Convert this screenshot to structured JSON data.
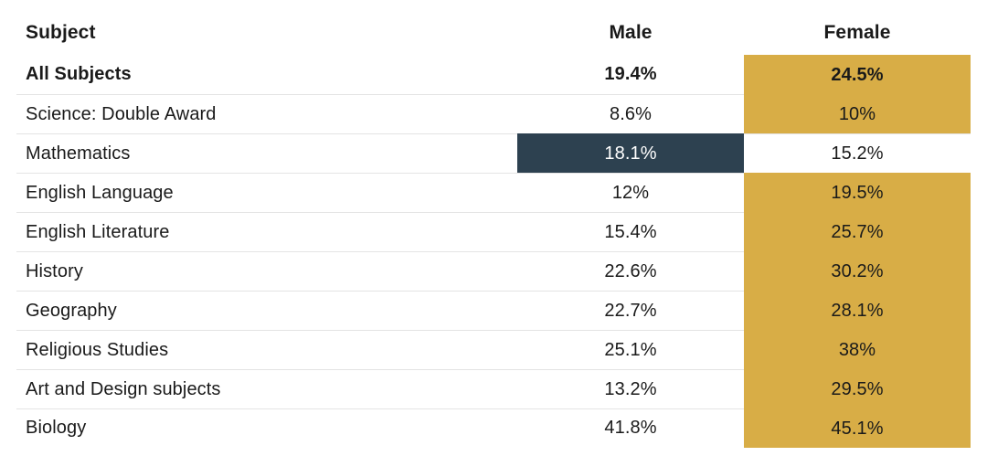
{
  "chart_data": {
    "type": "table",
    "columns": [
      "Subject",
      "Male",
      "Female"
    ],
    "rows": [
      {
        "subject": "All Subjects",
        "male": "19.4%",
        "female": "24.5%",
        "male_value": 19.4,
        "female_value": 24.5,
        "bold": true
      },
      {
        "subject": "Science: Double Award",
        "male": "8.6%",
        "female": "10%",
        "male_value": 8.6,
        "female_value": 10
      },
      {
        "subject": "Mathematics",
        "male": "18.1%",
        "female": "15.2%",
        "male_value": 18.1,
        "female_value": 15.2
      },
      {
        "subject": "English Language",
        "male": "12%",
        "female": "19.5%",
        "male_value": 12,
        "female_value": 19.5
      },
      {
        "subject": "English Literature",
        "male": "15.4%",
        "female": "25.7%",
        "male_value": 15.4,
        "female_value": 25.7
      },
      {
        "subject": "History",
        "male": "22.6%",
        "female": "30.2%",
        "male_value": 22.6,
        "female_value": 30.2
      },
      {
        "subject": "Geography",
        "male": "22.7%",
        "female": "28.1%",
        "male_value": 22.7,
        "female_value": 28.1
      },
      {
        "subject": "Religious Studies",
        "male": "25.1%",
        "female": "38%",
        "male_value": 25.1,
        "female_value": 38
      },
      {
        "subject": "Art and Design subjects",
        "male": "13.2%",
        "female": "29.5%",
        "male_value": 13.2,
        "female_value": 29.5
      },
      {
        "subject": "Biology",
        "male": "41.8%",
        "female": "45.1%",
        "male_value": 41.8,
        "female_value": 45.1
      }
    ],
    "highlight_colors": {
      "female_higher": "#d8ad46",
      "male_higher": "#2d4150"
    }
  }
}
